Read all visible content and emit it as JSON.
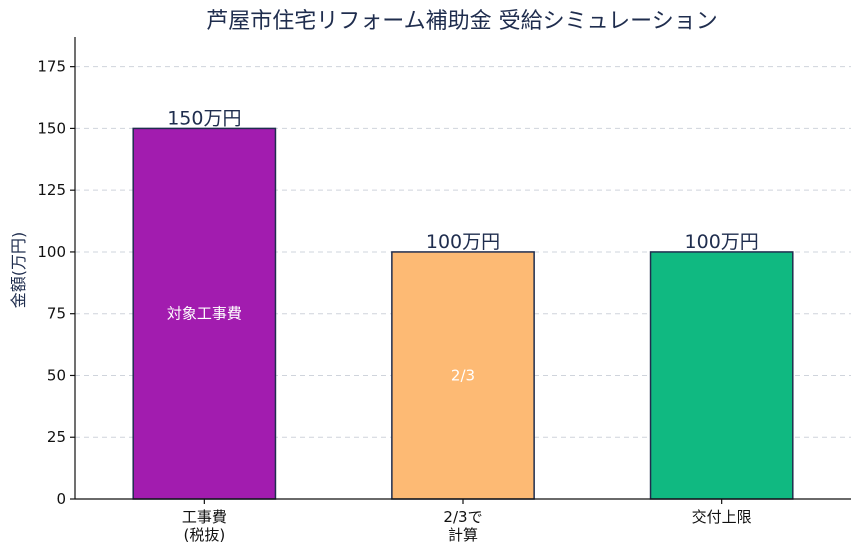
{
  "chart_data": {
    "type": "bar",
    "title": "芦屋市住宅リフォーム補助金 受給シミュレーション",
    "ylabel": "金額(万円)",
    "xlabel": "",
    "ylim": [
      0,
      187
    ],
    "yticks": [
      0,
      25,
      50,
      75,
      100,
      125,
      150,
      175
    ],
    "grid": true,
    "categories": [
      [
        "工事費",
        "(税抜)"
      ],
      [
        "2/3で",
        "計算"
      ],
      [
        "交付上限"
      ]
    ],
    "values": [
      150,
      100,
      100
    ],
    "value_labels": [
      "150万円",
      "100万円",
      "100万円"
    ],
    "inner_labels": [
      "対象工事費",
      "2/3",
      ""
    ],
    "colors": [
      "#a21caf",
      "#fdba74",
      "#10b981"
    ],
    "edge_color": "#1f2d4e"
  }
}
